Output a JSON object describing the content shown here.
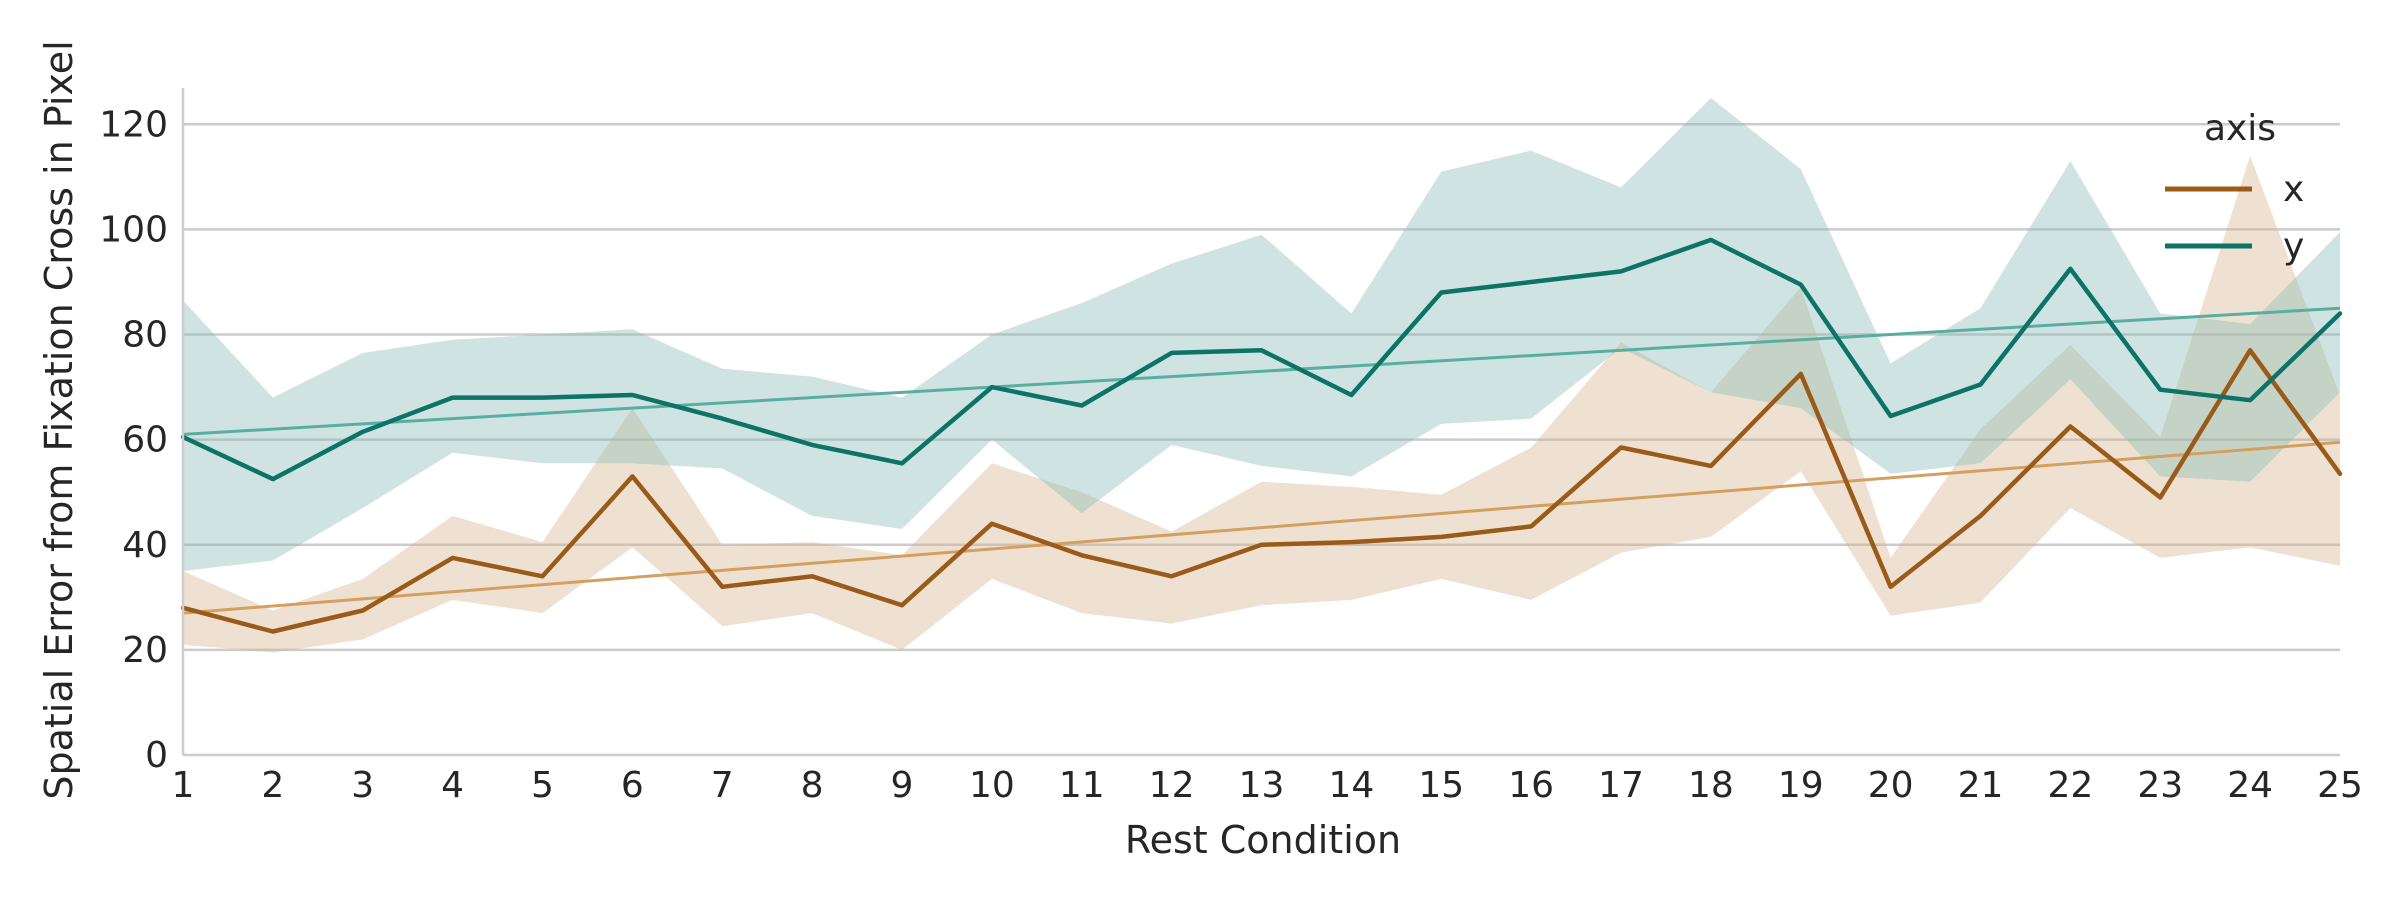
{
  "chart_data": {
    "type": "line",
    "xlabel": "Rest Condition",
    "ylabel": "Spatial Error from Fixation Cross in Pixel",
    "x": [
      1,
      2,
      3,
      4,
      5,
      6,
      7,
      8,
      9,
      10,
      11,
      12,
      13,
      14,
      15,
      16,
      17,
      18,
      19,
      20,
      21,
      22,
      23,
      24,
      25
    ],
    "xlim": [
      1,
      25
    ],
    "ylim": [
      0,
      125
    ],
    "yticks": [
      0,
      20,
      40,
      60,
      80,
      100,
      120
    ],
    "grid": "horizontal",
    "legend": {
      "title": "axis",
      "placement": "top-right"
    },
    "series": [
      {
        "name": "x",
        "color": "#9a5b1a",
        "band_color": "#d6b38c",
        "trend_color": "#d4a060",
        "values": [
          28,
          23.5,
          27.5,
          37.5,
          34,
          53,
          32,
          34,
          28.5,
          44,
          38,
          34,
          40,
          40.5,
          41.5,
          43.5,
          58.5,
          55,
          72.5,
          32,
          45.5,
          62.5,
          49,
          77,
          53.5
        ],
        "ci_low": [
          21,
          19.5,
          22,
          29.5,
          27,
          39.5,
          24.5,
          27,
          20,
          33.5,
          27,
          25,
          28.5,
          29.5,
          33.5,
          29.5,
          38.5,
          41.5,
          54,
          26.5,
          29,
          47,
          37.5,
          39.5,
          36
        ],
        "ci_high": [
          35,
          27.5,
          33.5,
          45.5,
          40.5,
          66,
          40,
          40.5,
          38,
          55.5,
          50,
          42.5,
          52,
          51,
          49.5,
          58.5,
          78.5,
          69,
          89,
          37.5,
          62,
          78,
          60.5,
          114,
          68.5
        ],
        "trend": [
          27,
          59.5
        ]
      },
      {
        "name": "y",
        "color": "#0d7366",
        "band_color": "#86bbb6",
        "trend_color": "#5aada3",
        "values": [
          60.5,
          52.5,
          61.5,
          68,
          68,
          68.5,
          64,
          59,
          55.5,
          70,
          66.5,
          76.5,
          77,
          68.5,
          88,
          90,
          92,
          98,
          89.5,
          64.5,
          70.5,
          92.5,
          69.5,
          67.5,
          84
        ],
        "ci_low": [
          35,
          37,
          47,
          57.5,
          55.5,
          55.5,
          54.5,
          45.5,
          43,
          60,
          46,
          59,
          55,
          53,
          63,
          64,
          77.5,
          69,
          66,
          53.5,
          55.5,
          71.5,
          53,
          52,
          69
        ],
        "ci_high": [
          86.5,
          68,
          76.5,
          79,
          80,
          81,
          73.5,
          72,
          68,
          80,
          86,
          93.5,
          99,
          84,
          111,
          115,
          108,
          125,
          111.5,
          74.5,
          85,
          113,
          84,
          82,
          99.5
        ],
        "trend": [
          61,
          85
        ]
      }
    ]
  }
}
